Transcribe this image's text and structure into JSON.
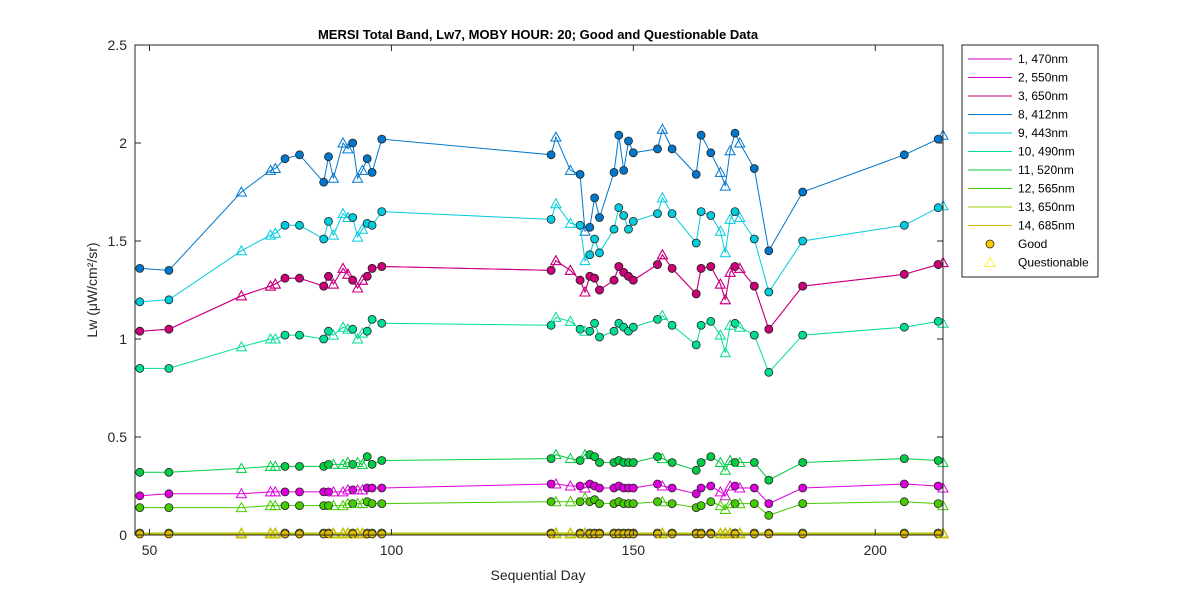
{
  "chart_data": {
    "type": "line",
    "title": "MERSI Total Band,  Lw7, MOBY HOUR: 20;  Good and Questionable Data",
    "xlabel": "Sequential Day",
    "ylabel": "Lw (μW/cm²/sr)",
    "xlim": [
      47,
      214
    ],
    "ylim": [
      0,
      2.5
    ],
    "xticks": [
      50,
      100,
      150,
      200
    ],
    "yticks": [
      0,
      0.5,
      1,
      1.5,
      2,
      2.5
    ],
    "grid": false,
    "legend_position": "outside-right",
    "x": [
      48,
      54,
      69,
      75,
      76,
      78,
      81,
      86,
      87,
      88,
      90,
      91,
      92,
      93,
      94,
      95,
      96,
      98,
      133,
      134,
      137,
      139,
      140,
      141,
      142,
      143,
      146,
      147,
      148,
      149,
      150,
      155,
      156,
      158,
      163,
      164,
      166,
      168,
      169,
      170,
      171,
      172,
      175,
      178,
      185,
      206,
      213,
      214
    ],
    "quality": [
      "G",
      "G",
      "Q",
      "Q",
      "Q",
      "G",
      "G",
      "G",
      "G",
      "Q",
      "Q",
      "Q",
      "G",
      "Q",
      "Q",
      "G",
      "G",
      "G",
      "G",
      "Q",
      "Q",
      "G",
      "Q",
      "G",
      "G",
      "G",
      "G",
      "G",
      "G",
      "G",
      "G",
      "G",
      "Q",
      "G",
      "G",
      "G",
      "G",
      "Q",
      "Q",
      "Q",
      "G",
      "Q",
      "G",
      "G",
      "G",
      "G",
      "G",
      "Q"
    ],
    "series": [
      {
        "name": "1, 470nm",
        "color": "#cc00cc",
        "values": [
          1.04,
          1.05,
          1.22,
          1.27,
          1.28,
          1.31,
          1.31,
          1.27,
          1.32,
          1.28,
          1.36,
          1.33,
          1.3,
          1.26,
          1.3,
          1.32,
          1.36,
          1.37,
          1.35,
          1.4,
          1.35,
          1.3,
          1.24,
          1.32,
          1.31,
          1.25,
          1.3,
          1.37,
          1.34,
          1.32,
          1.3,
          1.38,
          1.43,
          1.36,
          1.23,
          1.36,
          1.37,
          1.28,
          1.2,
          1.34,
          1.37,
          1.36,
          1.27,
          1.05,
          1.27,
          1.33,
          1.38,
          1.39
        ]
      },
      {
        "name": "2, 550nm",
        "color": "#dd00dd",
        "values": [
          0.2,
          0.21,
          0.21,
          0.22,
          0.22,
          0.22,
          0.22,
          0.22,
          0.22,
          0.22,
          0.22,
          0.23,
          0.23,
          0.23,
          0.23,
          0.24,
          0.24,
          0.24,
          0.26,
          0.26,
          0.25,
          0.25,
          0.24,
          0.26,
          0.25,
          0.24,
          0.24,
          0.25,
          0.24,
          0.24,
          0.24,
          0.26,
          0.25,
          0.24,
          0.21,
          0.24,
          0.25,
          0.22,
          0.2,
          0.25,
          0.25,
          0.24,
          0.24,
          0.16,
          0.24,
          0.26,
          0.25,
          0.24
        ]
      },
      {
        "name": "3, 650nm",
        "color": "#cc0077",
        "values": [
          1.04,
          1.05,
          1.22,
          1.27,
          1.28,
          1.31,
          1.31,
          1.27,
          1.32,
          1.28,
          1.36,
          1.33,
          1.3,
          1.26,
          1.3,
          1.32,
          1.36,
          1.37,
          1.35,
          1.4,
          1.35,
          1.3,
          1.24,
          1.32,
          1.31,
          1.25,
          1.3,
          1.37,
          1.34,
          1.32,
          1.3,
          1.38,
          1.43,
          1.36,
          1.23,
          1.36,
          1.37,
          1.28,
          1.2,
          1.34,
          1.37,
          1.36,
          1.27,
          1.05,
          1.27,
          1.33,
          1.38,
          1.39
        ]
      },
      {
        "name": "8, 412nm",
        "color": "#0077cc",
        "values": [
          1.36,
          1.35,
          1.75,
          1.86,
          1.87,
          1.92,
          1.94,
          1.8,
          1.93,
          1.82,
          2.0,
          1.97,
          2.0,
          1.82,
          1.86,
          1.92,
          1.85,
          2.02,
          1.94,
          2.03,
          1.86,
          1.84,
          1.55,
          1.57,
          1.72,
          1.62,
          1.85,
          2.04,
          1.86,
          2.01,
          1.95,
          1.97,
          2.07,
          1.97,
          1.84,
          2.04,
          1.95,
          1.85,
          1.78,
          1.96,
          2.05,
          2.0,
          1.87,
          1.45,
          1.75,
          1.94,
          2.02,
          2.04
        ]
      },
      {
        "name": "9, 443nm",
        "color": "#00ccdd",
        "values": [
          1.19,
          1.2,
          1.45,
          1.53,
          1.54,
          1.58,
          1.58,
          1.51,
          1.6,
          1.53,
          1.64,
          1.62,
          1.62,
          1.52,
          1.56,
          1.59,
          1.58,
          1.65,
          1.61,
          1.69,
          1.59,
          1.58,
          1.4,
          1.43,
          1.51,
          1.44,
          1.56,
          1.67,
          1.63,
          1.56,
          1.6,
          1.64,
          1.72,
          1.64,
          1.49,
          1.65,
          1.63,
          1.55,
          1.44,
          1.61,
          1.65,
          1.62,
          1.51,
          1.24,
          1.5,
          1.58,
          1.67,
          1.68
        ]
      },
      {
        "name": "10, 490nm",
        "color": "#00dd99",
        "values": [
          0.85,
          0.85,
          0.96,
          1.0,
          1.0,
          1.02,
          1.02,
          1.0,
          1.04,
          1.02,
          1.06,
          1.05,
          1.05,
          1.0,
          1.03,
          1.04,
          1.1,
          1.08,
          1.07,
          1.11,
          1.09,
          1.05,
          1.04,
          1.04,
          1.08,
          1.01,
          1.04,
          1.08,
          1.06,
          1.04,
          1.06,
          1.1,
          1.12,
          1.07,
          0.97,
          1.07,
          1.09,
          1.02,
          0.93,
          1.07,
          1.08,
          1.06,
          1.02,
          0.83,
          1.02,
          1.06,
          1.09,
          1.08
        ]
      },
      {
        "name": "11, 520nm",
        "color": "#00cc44",
        "values": [
          0.32,
          0.32,
          0.34,
          0.35,
          0.35,
          0.35,
          0.35,
          0.35,
          0.36,
          0.36,
          0.36,
          0.37,
          0.36,
          0.37,
          0.36,
          0.4,
          0.36,
          0.38,
          0.39,
          0.41,
          0.39,
          0.38,
          0.41,
          0.41,
          0.4,
          0.37,
          0.37,
          0.38,
          0.37,
          0.37,
          0.37,
          0.4,
          0.39,
          0.37,
          0.33,
          0.37,
          0.4,
          0.37,
          0.33,
          0.38,
          0.37,
          0.37,
          0.37,
          0.28,
          0.37,
          0.39,
          0.38,
          0.37
        ]
      },
      {
        "name": "12, 565nm",
        "color": "#44cc00",
        "values": [
          0.14,
          0.14,
          0.14,
          0.15,
          0.15,
          0.15,
          0.15,
          0.15,
          0.15,
          0.15,
          0.15,
          0.16,
          0.16,
          0.16,
          0.16,
          0.17,
          0.16,
          0.16,
          0.17,
          0.17,
          0.17,
          0.17,
          0.19,
          0.17,
          0.18,
          0.16,
          0.16,
          0.17,
          0.16,
          0.16,
          0.16,
          0.17,
          0.17,
          0.16,
          0.14,
          0.15,
          0.17,
          0.15,
          0.13,
          0.16,
          0.16,
          0.16,
          0.16,
          0.1,
          0.16,
          0.17,
          0.16,
          0.15
        ]
      },
      {
        "name": "13, 650nm",
        "color": "#99cc00",
        "values": [
          0.01,
          0.01,
          0.01,
          0.01,
          0.01,
          0.01,
          0.01,
          0.01,
          0.01,
          0.01,
          0.01,
          0.01,
          0.01,
          0.01,
          0.01,
          0.01,
          0.01,
          0.01,
          0.01,
          0.01,
          0.01,
          0.01,
          0.01,
          0.01,
          0.01,
          0.01,
          0.01,
          0.01,
          0.01,
          0.01,
          0.01,
          0.01,
          0.01,
          0.01,
          0.01,
          0.01,
          0.01,
          0.01,
          0.01,
          0.01,
          0.01,
          0.01,
          0.01,
          0.01,
          0.01,
          0.01,
          0.01,
          0.01
        ]
      },
      {
        "name": "14, 685nm",
        "color": "#ddbb00",
        "values": [
          0.005,
          0.005,
          0.005,
          0.005,
          0.005,
          0.005,
          0.005,
          0.005,
          0.005,
          0.005,
          0.005,
          0.005,
          0.005,
          0.005,
          0.005,
          0.005,
          0.005,
          0.005,
          0.005,
          0.005,
          0.005,
          0.005,
          0.005,
          0.005,
          0.005,
          0.005,
          0.005,
          0.005,
          0.005,
          0.005,
          0.005,
          0.005,
          0.005,
          0.005,
          0.005,
          0.005,
          0.005,
          0.005,
          0.005,
          0.005,
          0.005,
          0.005,
          0.005,
          0.005,
          0.005,
          0.005,
          0.005,
          0.005
        ]
      }
    ],
    "legend": {
      "marker_entries": [
        {
          "label": "Good",
          "marker": "circle",
          "color": "#ffcc00"
        },
        {
          "label": "Questionable",
          "marker": "triangle",
          "color": "#ffee33"
        }
      ]
    }
  }
}
